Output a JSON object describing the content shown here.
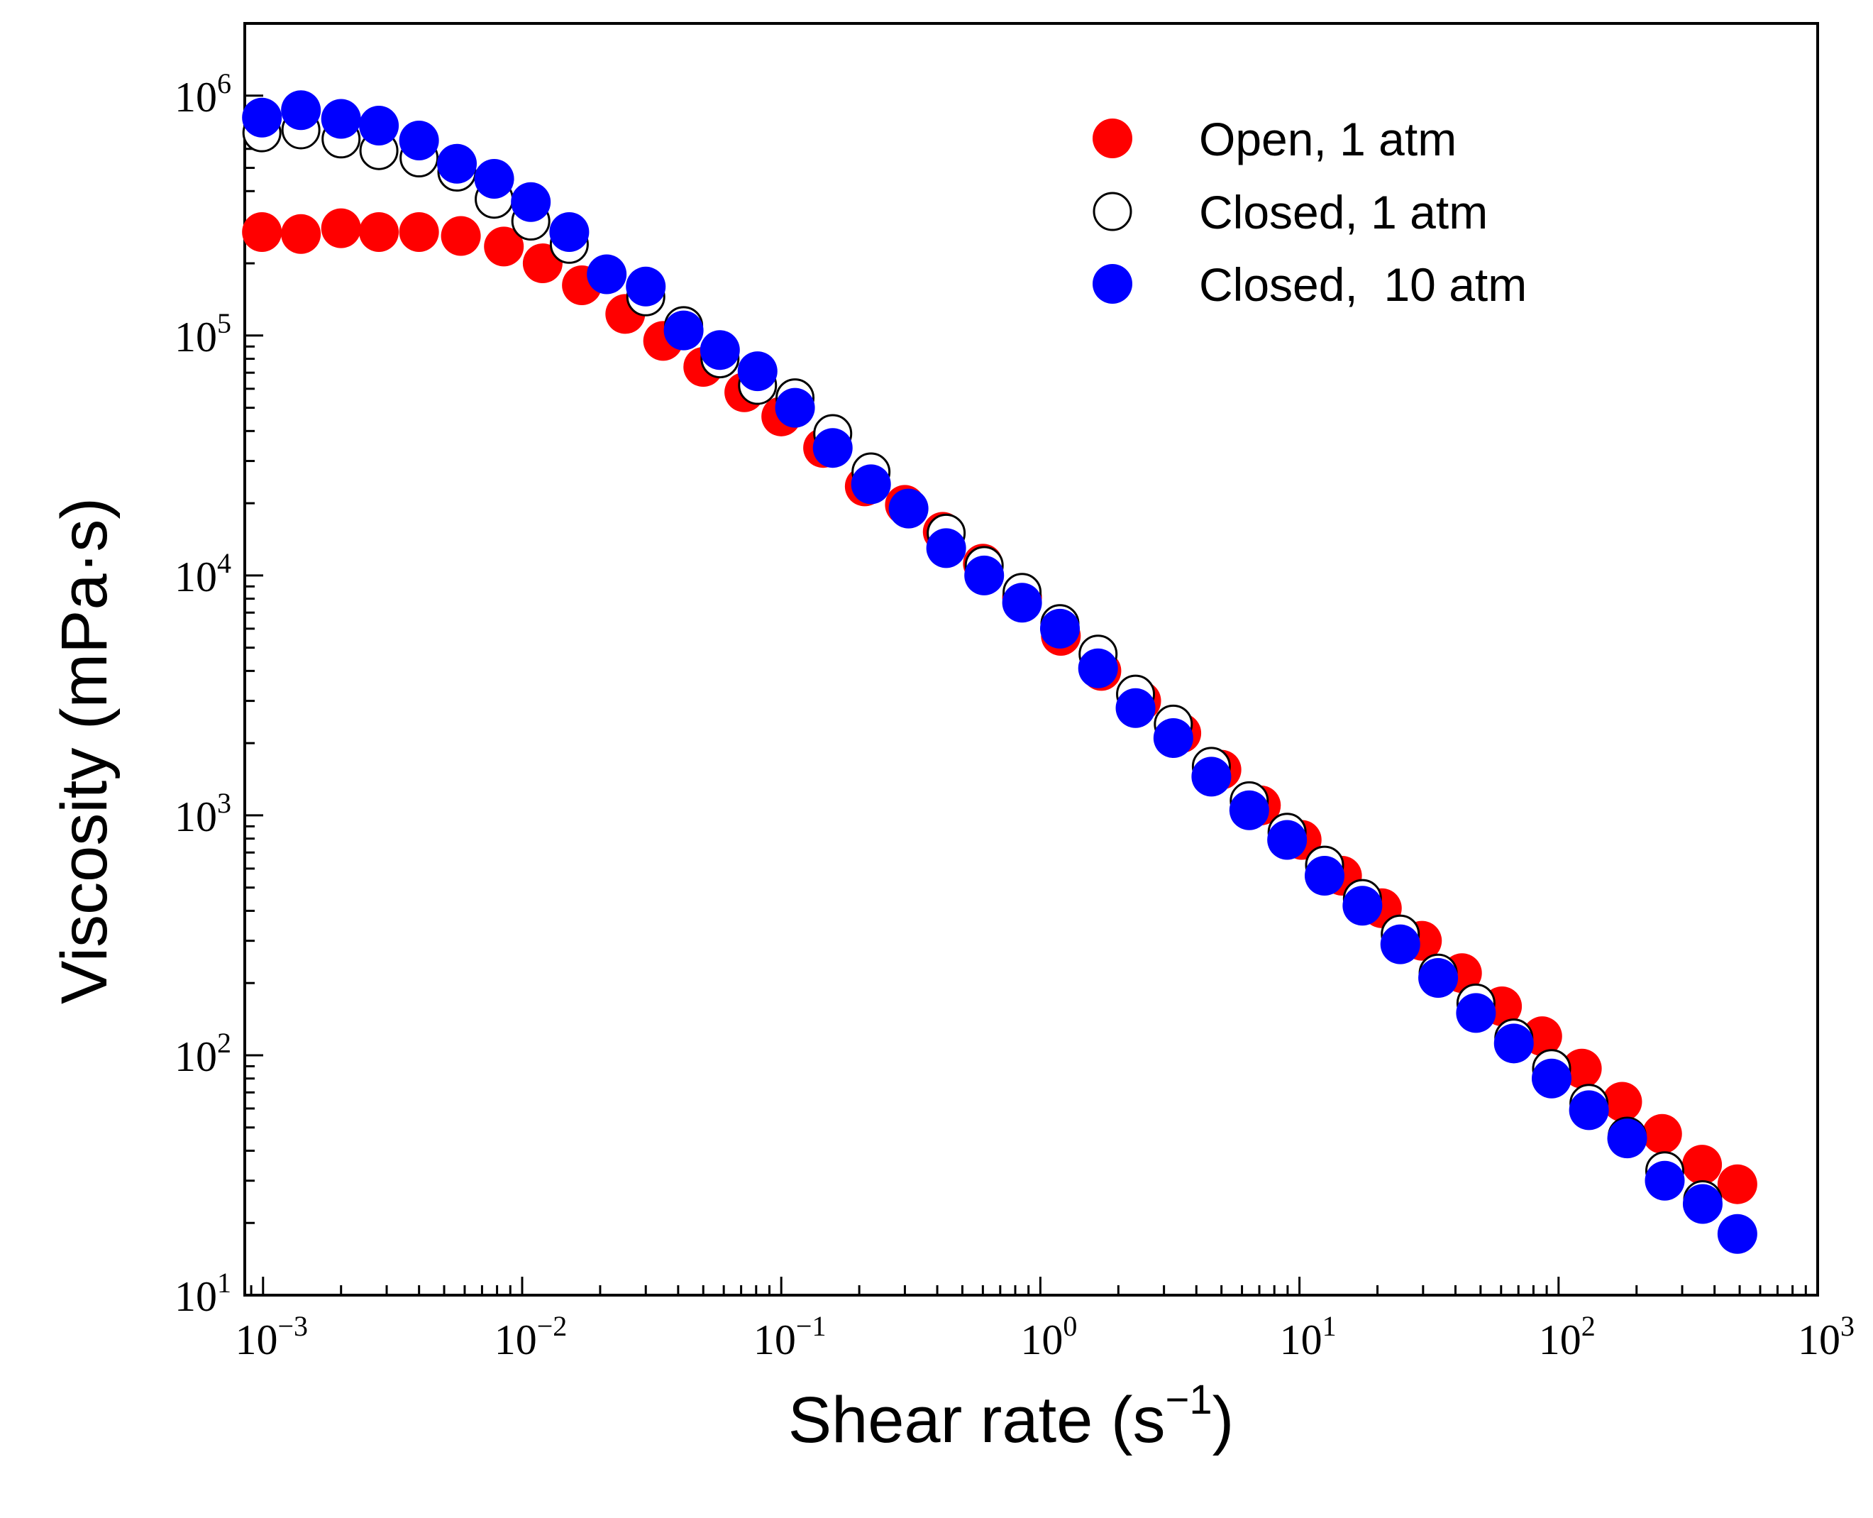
{
  "chart_data": {
    "type": "scatter",
    "xscale": "log",
    "yscale": "log",
    "xlim": [
      0.00085,
      1000
    ],
    "ylim": [
      10,
      2000000
    ],
    "xlabel": {
      "base": "Shear rate (s",
      "sup": "−1",
      "tail": ")"
    },
    "ylabel": "Viscosity (mPa·s)",
    "legend_position": "top-right",
    "x_ticks": [
      {
        "value": 0.001,
        "base": "10",
        "exp": "−3"
      },
      {
        "value": 0.01,
        "base": "10",
        "exp": "−2"
      },
      {
        "value": 0.1,
        "base": "10",
        "exp": "−1"
      },
      {
        "value": 1,
        "base": "10",
        "exp": "0"
      },
      {
        "value": 10,
        "base": "10",
        "exp": "1"
      },
      {
        "value": 100,
        "base": "10",
        "exp": "2"
      },
      {
        "value": 1000,
        "base": "10",
        "exp": "3"
      }
    ],
    "y_ticks": [
      {
        "value": 10,
        "base": "10",
        "exp": "1"
      },
      {
        "value": 100,
        "base": "10",
        "exp": "2"
      },
      {
        "value": 1000,
        "base": "10",
        "exp": "3"
      },
      {
        "value": 10000,
        "base": "10",
        "exp": "4"
      },
      {
        "value": 100000,
        "base": "10",
        "exp": "5"
      },
      {
        "value": 1000000,
        "base": "10",
        "exp": "6"
      }
    ],
    "series": [
      {
        "name": "Open, 1 atm",
        "marker": "filled",
        "color": "#ff0000",
        "x": [
          0.00099,
          0.0014,
          0.002,
          0.0028,
          0.004,
          0.0058,
          0.0085,
          0.012,
          0.017,
          0.025,
          0.035,
          0.05,
          0.072,
          0.1,
          0.145,
          0.21,
          0.3,
          0.42,
          0.6,
          0.85,
          1.2,
          1.72,
          2.45,
          3.5,
          5.0,
          7.1,
          10.2,
          14.6,
          20.8,
          29.7,
          42.4,
          60.5,
          86.5,
          123,
          176,
          251,
          358,
          490
        ],
        "y": [
          270000,
          265000,
          280000,
          270000,
          270000,
          260000,
          235000,
          200000,
          162000,
          123000,
          95000,
          74000,
          58000,
          46000,
          34000,
          23500,
          19700,
          15200,
          11200,
          8100,
          5600,
          4000,
          3000,
          2200,
          1550,
          1100,
          790,
          560,
          410,
          300,
          220,
          160,
          120,
          88,
          64,
          47,
          35,
          29
        ]
      },
      {
        "name": "Closed, 1 atm",
        "marker": "open",
        "color": "#000000",
        "x": [
          0.00099,
          0.0014,
          0.002,
          0.0028,
          0.004,
          0.0056,
          0.0078,
          0.0108,
          0.0152,
          0.0212,
          0.03,
          0.042,
          0.058,
          0.081,
          0.113,
          0.158,
          0.222,
          0.31,
          0.433,
          0.607,
          0.85,
          1.19,
          1.67,
          2.33,
          3.26,
          4.57,
          6.4,
          8.96,
          12.5,
          17.5,
          24.5,
          34.3,
          48,
          67.2,
          94,
          131,
          184,
          257,
          360,
          490
        ],
        "y": [
          700000,
          720000,
          660000,
          590000,
          550000,
          480000,
          370000,
          300000,
          240000,
          180000,
          145000,
          110000,
          80000,
          62000,
          55000,
          39000,
          27000,
          19000,
          15000,
          11000,
          8500,
          6300,
          4700,
          3200,
          2400,
          1600,
          1150,
          850,
          620,
          450,
          320,
          220,
          165,
          118,
          88,
          63,
          46,
          33,
          25,
          18
        ]
      },
      {
        "name": "Closed,  10 atm",
        "marker": "filled",
        "color": "#0000ff",
        "x": [
          0.00099,
          0.0014,
          0.002,
          0.0028,
          0.004,
          0.0056,
          0.0078,
          0.0108,
          0.0152,
          0.0212,
          0.03,
          0.042,
          0.058,
          0.081,
          0.113,
          0.158,
          0.222,
          0.31,
          0.433,
          0.607,
          0.85,
          1.19,
          1.67,
          2.33,
          3.26,
          4.57,
          6.4,
          8.96,
          12.5,
          17.5,
          24.5,
          34.3,
          48,
          67.2,
          94,
          131,
          184,
          257,
          360,
          490
        ],
        "y": [
          810000,
          870000,
          800000,
          750000,
          650000,
          520000,
          450000,
          360000,
          270000,
          180000,
          160000,
          105000,
          87000,
          71000,
          50000,
          34000,
          24000,
          19000,
          13000,
          10000,
          7700,
          6000,
          4100,
          2800,
          2100,
          1450,
          1050,
          790,
          560,
          420,
          290,
          210,
          150,
          112,
          80,
          59,
          45,
          30,
          24,
          18
        ]
      }
    ]
  }
}
